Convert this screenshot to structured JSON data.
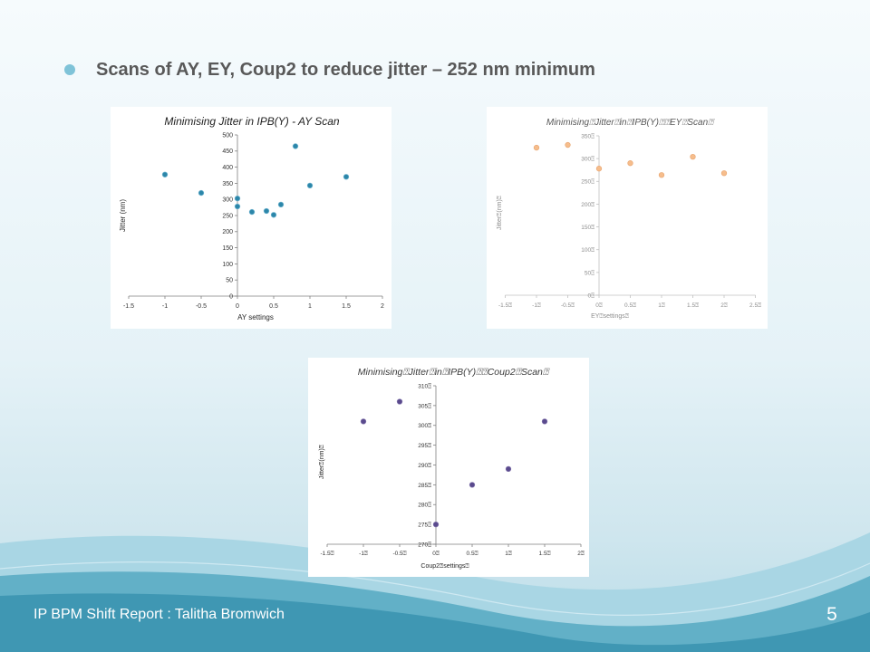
{
  "slide": {
    "title": "Scans of AY, EY, Coup2 to reduce jitter – 252 nm minimum",
    "footer": "IP BPM Shift Report : Talitha Bromwich",
    "page_number": "5"
  },
  "colors": {
    "bullet": "#7fc3d8",
    "footer_band": "#3f97b3"
  },
  "chart_data": [
    {
      "type": "scatter",
      "title": "Minimising Jitter in IPB(Y) - AY Scan",
      "xlabel": "AY settings",
      "ylabel": "Jitter (nm)",
      "xlim": [
        -1.5,
        2
      ],
      "ylim": [
        0,
        500
      ],
      "x_tick_labels": [
        "-1.5",
        "-1",
        "-0.5",
        "0",
        "0.5",
        "1",
        "1.5",
        "2"
      ],
      "y_tick_labels": [
        "0",
        "50",
        "100",
        "150",
        "200",
        "250",
        "300",
        "350",
        "400",
        "450",
        "500"
      ],
      "grid": false,
      "legend": "none",
      "marker_color": "#2c86a9",
      "series": [
        {
          "x": [
            -1,
            -0.5,
            0,
            0,
            0.2,
            0.4,
            0.5,
            0.6,
            0.8,
            1,
            1.5
          ],
          "y": [
            377,
            320,
            303,
            278,
            261,
            264,
            252,
            284,
            465,
            343,
            370
          ]
        }
      ]
    },
    {
      "type": "scatter",
      "title": "Minimising⍰Jitter⍰in⍰IPB(Y)⍰⍰EY⍰Scan⍰",
      "xlabel": "EY⍰settings⍰",
      "ylabel": "Jitter⍰(nm)⍰",
      "xlim": [
        -1.5,
        2.5
      ],
      "ylim": [
        0,
        350
      ],
      "x_tick_labels": [
        "-1.5⍰",
        "-1⍰",
        "-0.5⍰",
        "0⍰",
        "0.5⍰",
        "1⍰",
        "1.5⍰",
        "2⍰",
        "2.5⍰"
      ],
      "y_tick_labels": [
        "0⍰",
        "50⍰",
        "100⍰",
        "150⍰",
        "200⍰",
        "250⍰",
        "300⍰",
        "350⍰"
      ],
      "grid": false,
      "legend": "none",
      "marker_color": "#f6bd8c",
      "series": [
        {
          "x": [
            -1,
            -0.5,
            0,
            0.5,
            1,
            1.5,
            2
          ],
          "y": [
            324,
            330,
            278,
            290,
            264,
            304,
            268
          ]
        }
      ]
    },
    {
      "type": "scatter",
      "title": "Minimising⍰Jitter⍰in⍰IPB(Y)⍰⍰Coup2⍰Scan⍰",
      "xlabel": "Coup2⍰settings⍰",
      "ylabel": "Jitter⍰(nm)⍰",
      "xlim": [
        -1.5,
        2
      ],
      "ylim": [
        270,
        310
      ],
      "x_tick_labels": [
        "-1.5⍰",
        "-1⍰",
        "-0.5⍰",
        "0⍰",
        "0.5⍰",
        "1⍰",
        "1.5⍰",
        "2⍰"
      ],
      "y_tick_labels": [
        "270⍰",
        "275⍰",
        "280⍰",
        "285⍰",
        "290⍰",
        "295⍰",
        "300⍰",
        "305⍰",
        "310⍰"
      ],
      "grid": false,
      "legend": "none",
      "marker_color": "#5a4a8d",
      "series": [
        {
          "x": [
            -1,
            -0.5,
            0,
            0.5,
            1,
            1.5
          ],
          "y": [
            301,
            306,
            275,
            285,
            289,
            301
          ]
        }
      ]
    }
  ]
}
